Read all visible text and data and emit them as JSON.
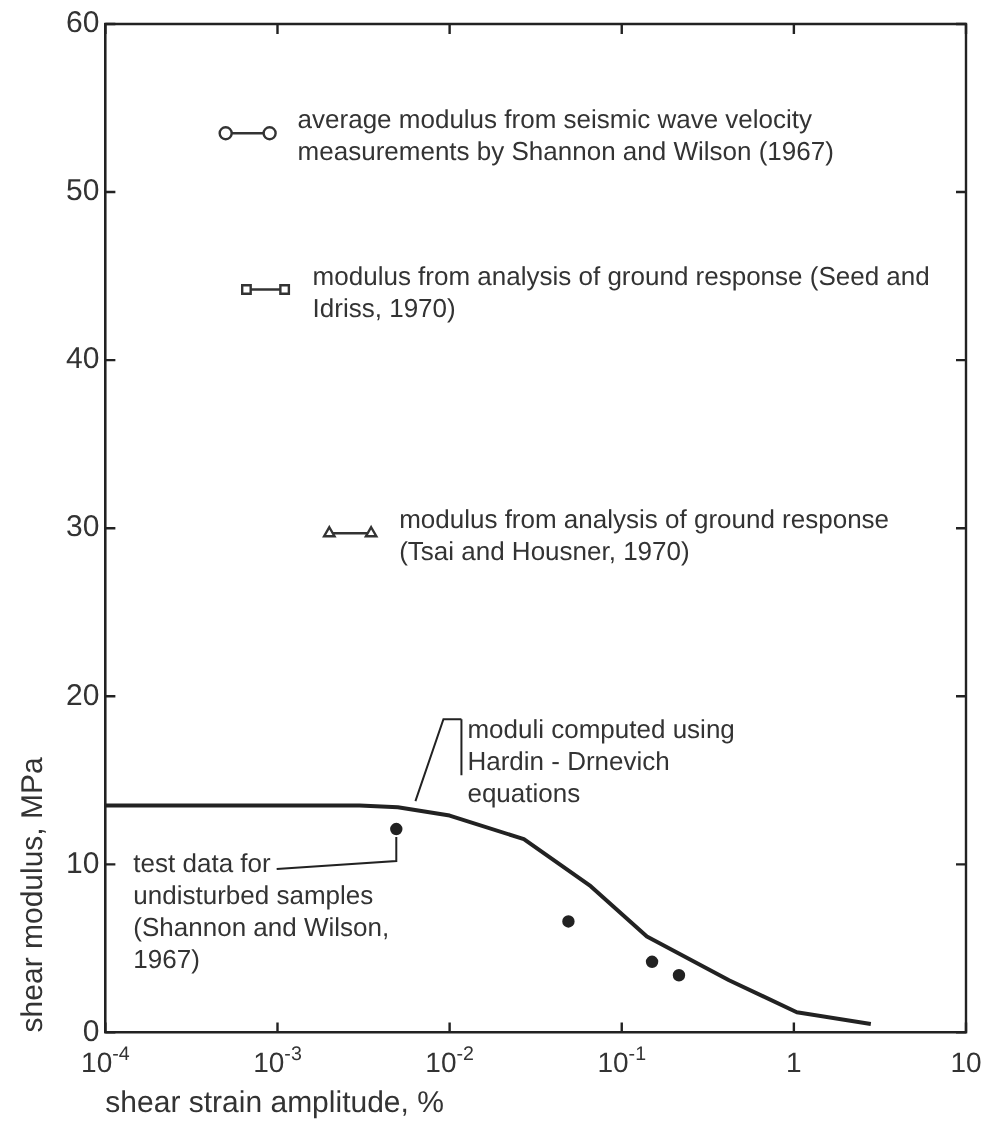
{
  "chart_data": {
    "type": "line",
    "xlabel": "shear strain amplitude, %",
    "ylabel": "shear modulus, MPa",
    "log": "x",
    "grid": false,
    "legend": false,
    "xlim": [
      0.0001,
      10
    ],
    "xticks": [
      {
        "value": 0.0001,
        "label": "10$^{-4}$"
      },
      {
        "value": 0.001,
        "label": "10$^{-3}$"
      },
      {
        "value": 0.01,
        "label": "10$^{-2}$"
      },
      {
        "value": 0.1,
        "label": "10$^{-1}$"
      },
      1,
      10
    ],
    "ylim": [
      0,
      60
    ],
    "yticks": [
      0,
      10,
      20,
      30,
      40,
      50,
      60
    ],
    "series": [
      {
        "color": "#222222",
        "marker": "none",
        "line_style": "solid",
        "x": [
          0.0001,
          0.001,
          0.003,
          0.005,
          0.01,
          0.027,
          0.066,
          0.14,
          0.42,
          1.04,
          2.8
        ],
        "values": [
          13.5,
          13.5,
          13.5,
          13.4,
          12.9,
          11.5,
          8.7,
          5.7,
          3.1,
          1.2,
          0.5
        ]
      },
      {
        "type": "scatter",
        "color": "#222222",
        "marker": "circle",
        "x": [
          0.0049,
          0.049,
          0.15,
          0.215
        ],
        "values": [
          12.1,
          6.6,
          4.2,
          3.4
        ]
      },
      {
        "type": "line",
        "name": "average modulus from seismic wave velocity measurements by Shannon and Wilson (1967)",
        "color": "#333333",
        "marker": "circle",
        "line_style": "solid",
        "x": [
          0.0005,
          0.0009
        ],
        "values": [
          53.5,
          53.5
        ]
      },
      {
        "type": "line",
        "name": "modulus from analysis of ground response (Seed and Idriss, 1970)",
        "color": "#333333",
        "marker": "square",
        "line_style": "solid",
        "x": [
          0.00066,
          0.0011
        ],
        "values": [
          44.2,
          44.2
        ]
      },
      {
        "type": "line",
        "name": "modulus from analysis of ground response (Tsai and Housner, 1970)",
        "color": "#333333",
        "marker": "triangle",
        "line_style": "solid",
        "x": [
          0.002,
          0.0035
        ],
        "values": [
          29.7,
          29.7
        ]
      }
    ],
    "annotations": [
      {
        "text": "moduli computed using Hardin - Drnevich equations",
        "x": 0.006,
        "y": 13.4
      },
      {
        "text": "test data for undisturbed samples (Shannon and Wilson, 1967)",
        "x": 0.0049,
        "y": 12.1
      }
    ]
  }
}
